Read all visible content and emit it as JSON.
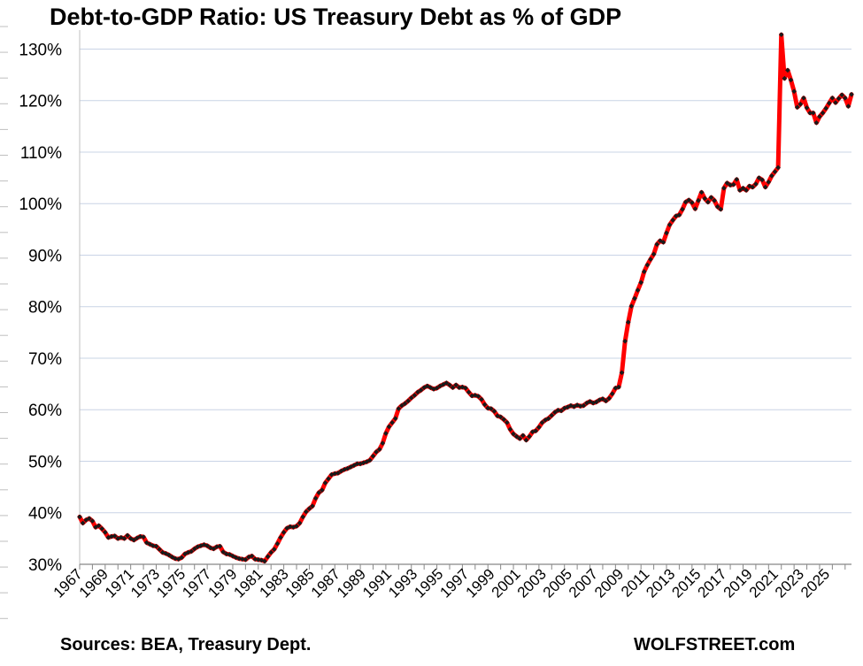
{
  "chart_data": {
    "type": "line",
    "title": "Debt-to-GDP Ratio: US Treasury Debt as % of GDP",
    "xlabel": "",
    "ylabel": "",
    "ylim": [
      30,
      133
    ],
    "xlim": [
      1967,
      2025.6
    ],
    "y_ticks": [
      "30%",
      "40%",
      "50%",
      "60%",
      "70%",
      "80%",
      "90%",
      "100%",
      "110%",
      "120%",
      "130%"
    ],
    "y_tick_values": [
      30,
      40,
      50,
      60,
      70,
      80,
      90,
      100,
      110,
      120,
      130
    ],
    "x_ticks": [
      "1967",
      "1969",
      "1971",
      "1973",
      "1975",
      "1977",
      "1979",
      "1981",
      "1983",
      "1985",
      "1987",
      "1989",
      "1991",
      "1993",
      "1995",
      "1997",
      "1999",
      "2001",
      "2003",
      "2005",
      "2007",
      "2009",
      "2011",
      "2013",
      "2015",
      "2017",
      "2019",
      "2021",
      "2023",
      "2025"
    ],
    "grid": true,
    "series": [
      {
        "name": "Debt-to-GDP Ratio",
        "color": "#ff0000",
        "marker_color": "#1a1a1a",
        "points": [
          [
            1967.0,
            39.2
          ],
          [
            1967.25,
            38.0
          ],
          [
            1967.5,
            38.6
          ],
          [
            1967.75,
            38.9
          ],
          [
            1968.0,
            38.4
          ],
          [
            1968.25,
            37.2
          ],
          [
            1968.5,
            37.5
          ],
          [
            1968.75,
            36.9
          ],
          [
            1969.0,
            36.2
          ],
          [
            1969.25,
            35.2
          ],
          [
            1969.5,
            35.4
          ],
          [
            1969.75,
            35.5
          ],
          [
            1970.0,
            35.0
          ],
          [
            1970.25,
            35.2
          ],
          [
            1970.5,
            35.0
          ],
          [
            1970.75,
            35.6
          ],
          [
            1971.0,
            35.0
          ],
          [
            1971.25,
            34.7
          ],
          [
            1971.5,
            35.1
          ],
          [
            1971.75,
            35.4
          ],
          [
            1972.0,
            35.3
          ],
          [
            1972.25,
            34.2
          ],
          [
            1972.5,
            33.9
          ],
          [
            1972.75,
            33.6
          ],
          [
            1973.0,
            33.5
          ],
          [
            1973.25,
            32.9
          ],
          [
            1973.5,
            32.3
          ],
          [
            1973.75,
            32.1
          ],
          [
            1974.0,
            31.8
          ],
          [
            1974.25,
            31.4
          ],
          [
            1974.5,
            31.1
          ],
          [
            1974.75,
            31.0
          ],
          [
            1975.0,
            31.3
          ],
          [
            1975.25,
            32.0
          ],
          [
            1975.5,
            32.3
          ],
          [
            1975.75,
            32.5
          ],
          [
            1976.0,
            33.0
          ],
          [
            1976.25,
            33.4
          ],
          [
            1976.5,
            33.6
          ],
          [
            1976.75,
            33.8
          ],
          [
            1977.0,
            33.6
          ],
          [
            1977.25,
            33.2
          ],
          [
            1977.5,
            33.0
          ],
          [
            1977.75,
            33.4
          ],
          [
            1978.0,
            33.5
          ],
          [
            1978.25,
            32.4
          ],
          [
            1978.5,
            32.0
          ],
          [
            1978.75,
            31.9
          ],
          [
            1979.0,
            31.6
          ],
          [
            1979.25,
            31.3
          ],
          [
            1979.5,
            31.1
          ],
          [
            1979.75,
            31.0
          ],
          [
            1980.0,
            30.9
          ],
          [
            1980.25,
            31.4
          ],
          [
            1980.5,
            31.6
          ],
          [
            1980.75,
            31.0
          ],
          [
            1981.0,
            30.9
          ],
          [
            1981.25,
            30.8
          ],
          [
            1981.5,
            30.6
          ],
          [
            1981.75,
            31.5
          ],
          [
            1982.0,
            32.3
          ],
          [
            1982.25,
            32.9
          ],
          [
            1982.5,
            34.0
          ],
          [
            1982.75,
            35.2
          ],
          [
            1983.0,
            36.2
          ],
          [
            1983.25,
            37.0
          ],
          [
            1983.5,
            37.3
          ],
          [
            1983.75,
            37.2
          ],
          [
            1984.0,
            37.4
          ],
          [
            1984.25,
            38.0
          ],
          [
            1984.5,
            39.2
          ],
          [
            1984.75,
            40.2
          ],
          [
            1985.0,
            40.8
          ],
          [
            1985.25,
            41.3
          ],
          [
            1985.5,
            42.8
          ],
          [
            1985.75,
            43.9
          ],
          [
            1986.0,
            44.4
          ],
          [
            1986.25,
            45.8
          ],
          [
            1986.5,
            46.6
          ],
          [
            1986.75,
            47.4
          ],
          [
            1987.0,
            47.6
          ],
          [
            1987.25,
            47.7
          ],
          [
            1987.5,
            48.1
          ],
          [
            1987.75,
            48.4
          ],
          [
            1988.0,
            48.6
          ],
          [
            1988.25,
            48.9
          ],
          [
            1988.5,
            49.2
          ],
          [
            1988.75,
            49.5
          ],
          [
            1989.0,
            49.5
          ],
          [
            1989.25,
            49.7
          ],
          [
            1989.5,
            49.9
          ],
          [
            1989.75,
            50.2
          ],
          [
            1990.0,
            51.0
          ],
          [
            1990.25,
            51.8
          ],
          [
            1990.5,
            52.3
          ],
          [
            1990.75,
            53.5
          ],
          [
            1991.0,
            55.4
          ],
          [
            1991.25,
            56.7
          ],
          [
            1991.5,
            57.5
          ],
          [
            1991.75,
            58.3
          ],
          [
            1992.0,
            60.2
          ],
          [
            1992.25,
            60.8
          ],
          [
            1992.5,
            61.2
          ],
          [
            1992.75,
            61.7
          ],
          [
            1993.0,
            62.3
          ],
          [
            1993.25,
            62.8
          ],
          [
            1993.5,
            63.4
          ],
          [
            1993.75,
            63.8
          ],
          [
            1994.0,
            64.3
          ],
          [
            1994.25,
            64.6
          ],
          [
            1994.5,
            64.3
          ],
          [
            1994.75,
            64.0
          ],
          [
            1995.0,
            64.2
          ],
          [
            1995.25,
            64.6
          ],
          [
            1995.5,
            64.9
          ],
          [
            1995.75,
            65.2
          ],
          [
            1996.0,
            64.8
          ],
          [
            1996.25,
            64.3
          ],
          [
            1996.5,
            64.8
          ],
          [
            1996.75,
            64.3
          ],
          [
            1997.0,
            64.4
          ],
          [
            1997.25,
            64.2
          ],
          [
            1997.5,
            63.4
          ],
          [
            1997.75,
            62.7
          ],
          [
            1998.0,
            62.8
          ],
          [
            1998.25,
            62.6
          ],
          [
            1998.5,
            62.0
          ],
          [
            1998.75,
            61.0
          ],
          [
            1999.0,
            60.3
          ],
          [
            1999.25,
            60.2
          ],
          [
            1999.5,
            59.7
          ],
          [
            1999.75,
            58.8
          ],
          [
            2000.0,
            58.6
          ],
          [
            2000.25,
            58.1
          ],
          [
            2000.5,
            57.5
          ],
          [
            2000.75,
            56.2
          ],
          [
            2001.0,
            55.3
          ],
          [
            2001.25,
            54.8
          ],
          [
            2001.5,
            54.4
          ],
          [
            2001.75,
            55.0
          ],
          [
            2002.0,
            54.1
          ],
          [
            2002.25,
            54.8
          ],
          [
            2002.5,
            55.7
          ],
          [
            2002.75,
            55.9
          ],
          [
            2003.0,
            56.6
          ],
          [
            2003.25,
            57.5
          ],
          [
            2003.5,
            58.0
          ],
          [
            2003.75,
            58.3
          ],
          [
            2004.0,
            58.9
          ],
          [
            2004.25,
            59.5
          ],
          [
            2004.5,
            59.9
          ],
          [
            2004.75,
            59.8
          ],
          [
            2005.0,
            60.3
          ],
          [
            2005.25,
            60.5
          ],
          [
            2005.5,
            60.8
          ],
          [
            2005.75,
            60.6
          ],
          [
            2006.0,
            60.9
          ],
          [
            2006.25,
            60.7
          ],
          [
            2006.5,
            60.8
          ],
          [
            2006.75,
            61.3
          ],
          [
            2007.0,
            61.6
          ],
          [
            2007.25,
            61.3
          ],
          [
            2007.5,
            61.5
          ],
          [
            2007.75,
            61.9
          ],
          [
            2008.0,
            62.1
          ],
          [
            2008.25,
            61.7
          ],
          [
            2008.5,
            62.2
          ],
          [
            2008.75,
            63.1
          ],
          [
            2009.0,
            64.2
          ],
          [
            2009.25,
            64.4
          ],
          [
            2009.5,
            67.2
          ],
          [
            2009.75,
            73.3
          ],
          [
            2010.0,
            77.0
          ],
          [
            2010.25,
            80.1
          ],
          [
            2010.5,
            81.6
          ],
          [
            2010.75,
            83.2
          ],
          [
            2011.0,
            84.7
          ],
          [
            2011.25,
            86.8
          ],
          [
            2011.5,
            88.1
          ],
          [
            2011.75,
            89.2
          ],
          [
            2012.0,
            90.2
          ],
          [
            2012.25,
            92.1
          ],
          [
            2012.5,
            92.8
          ],
          [
            2012.75,
            92.5
          ],
          [
            2013.0,
            94.3
          ],
          [
            2013.25,
            95.9
          ],
          [
            2013.5,
            96.8
          ],
          [
            2013.75,
            97.6
          ],
          [
            2014.0,
            97.8
          ],
          [
            2014.25,
            98.9
          ],
          [
            2014.5,
            100.3
          ],
          [
            2014.75,
            100.7
          ],
          [
            2015.0,
            100.2
          ],
          [
            2015.25,
            99.0
          ],
          [
            2015.5,
            100.6
          ],
          [
            2015.75,
            102.2
          ],
          [
            2016.0,
            101.0
          ],
          [
            2016.25,
            100.3
          ],
          [
            2016.5,
            101.2
          ],
          [
            2016.75,
            100.6
          ],
          [
            2017.0,
            99.4
          ],
          [
            2017.25,
            98.9
          ],
          [
            2017.5,
            103.0
          ],
          [
            2017.75,
            104.0
          ],
          [
            2018.0,
            103.6
          ],
          [
            2018.25,
            103.7
          ],
          [
            2018.5,
            104.7
          ],
          [
            2018.75,
            102.6
          ],
          [
            2019.0,
            103.0
          ],
          [
            2019.25,
            102.6
          ],
          [
            2019.5,
            103.4
          ],
          [
            2019.75,
            103.2
          ],
          [
            2020.0,
            103.8
          ],
          [
            2020.25,
            105.0
          ],
          [
            2020.5,
            104.6
          ],
          [
            2020.75,
            103.2
          ],
          [
            2021.0,
            104.2
          ],
          [
            2021.25,
            105.4
          ],
          [
            2021.5,
            106.2
          ],
          [
            2021.75,
            107.0
          ],
          [
            2022.0,
            132.8
          ],
          [
            2022.25,
            124.3
          ],
          [
            2022.5,
            125.9
          ],
          [
            2022.75,
            124.0
          ],
          [
            2023.0,
            121.8
          ],
          [
            2023.25,
            118.7
          ],
          [
            2023.5,
            119.3
          ],
          [
            2023.75,
            120.5
          ],
          [
            2024.0,
            118.6
          ],
          [
            2024.25,
            117.6
          ],
          [
            2024.5,
            117.6
          ],
          [
            2024.75,
            115.7
          ],
          [
            2025.0,
            116.9
          ],
          [
            2025.25,
            117.6
          ],
          [
            2025.5,
            118.5
          ],
          [
            2025.75,
            119.5
          ],
          [
            2026.0,
            120.5
          ],
          [
            2026.25,
            119.6
          ],
          [
            2026.5,
            120.4
          ],
          [
            2026.75,
            121.1
          ],
          [
            2027.0,
            120.5
          ],
          [
            2027.25,
            118.9
          ],
          [
            2027.5,
            121.2
          ]
        ]
      }
    ]
  },
  "footer": {
    "source": "Sources: BEA, Treasury Dept.",
    "brand": "WOLFSTREET.com"
  }
}
